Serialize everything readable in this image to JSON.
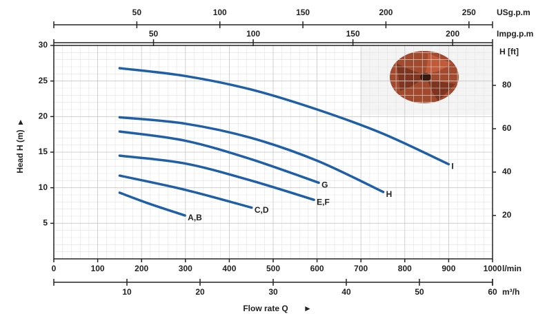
{
  "chart_data": {
    "type": "line",
    "x_unit": "l/min",
    "xlim": [
      0,
      1000
    ],
    "xticks": [
      0,
      100,
      200,
      300,
      400,
      500,
      600,
      700,
      800,
      900,
      1000
    ],
    "y_label": "Head H (m)",
    "ylim": [
      0,
      30
    ],
    "yticks": [
      5,
      10,
      15,
      20,
      25,
      30
    ],
    "x_label": "Flow rate Q",
    "grid": true,
    "top_axis_1": {
      "unit": "USg.p.m",
      "xlim": [
        0,
        264.2
      ],
      "xticks": [
        50,
        100,
        150,
        200,
        250
      ]
    },
    "top_axis_2": {
      "unit": "Impg.p.m",
      "xlim": [
        0,
        220
      ],
      "xticks": [
        50,
        100,
        150,
        200
      ]
    },
    "bottom_axis_2": {
      "unit": "m³/h",
      "xlim": [
        0,
        60
      ],
      "xticks": [
        10,
        20,
        30,
        40,
        50,
        60
      ]
    },
    "y2_label": "H [ft]",
    "y2lim": [
      0,
      98.4
    ],
    "y2ticks": [
      20,
      40,
      60,
      80
    ],
    "series": [
      {
        "name": "A,B",
        "color": "#1f5fa8",
        "x": [
          150,
          220,
          299
        ],
        "values": [
          9.3,
          7.7,
          6.1
        ]
      },
      {
        "name": "C,D",
        "color": "#1f5fa8",
        "x": [
          150,
          300,
          451
        ],
        "values": [
          11.7,
          9.7,
          7.2
        ]
      },
      {
        "name": "E,F",
        "color": "#1f5fa8",
        "x": [
          150,
          300,
          450,
          593
        ],
        "values": [
          14.5,
          13.4,
          11.0,
          8.3
        ]
      },
      {
        "name": "G",
        "color": "#1f5fa8",
        "x": [
          150,
          300,
          450,
          604
        ],
        "values": [
          17.9,
          16.6,
          14.0,
          10.7
        ]
      },
      {
        "name": "H",
        "color": "#1f5fa8",
        "x": [
          150,
          300,
          450,
          600,
          751
        ],
        "values": [
          19.9,
          19.0,
          17.0,
          13.8,
          9.4
        ]
      },
      {
        "name": "I",
        "color": "#1f5fa8",
        "x": [
          150,
          300,
          450,
          600,
          750,
          900
        ],
        "values": [
          26.8,
          25.7,
          23.8,
          21.0,
          17.6,
          13.3
        ]
      }
    ]
  }
}
